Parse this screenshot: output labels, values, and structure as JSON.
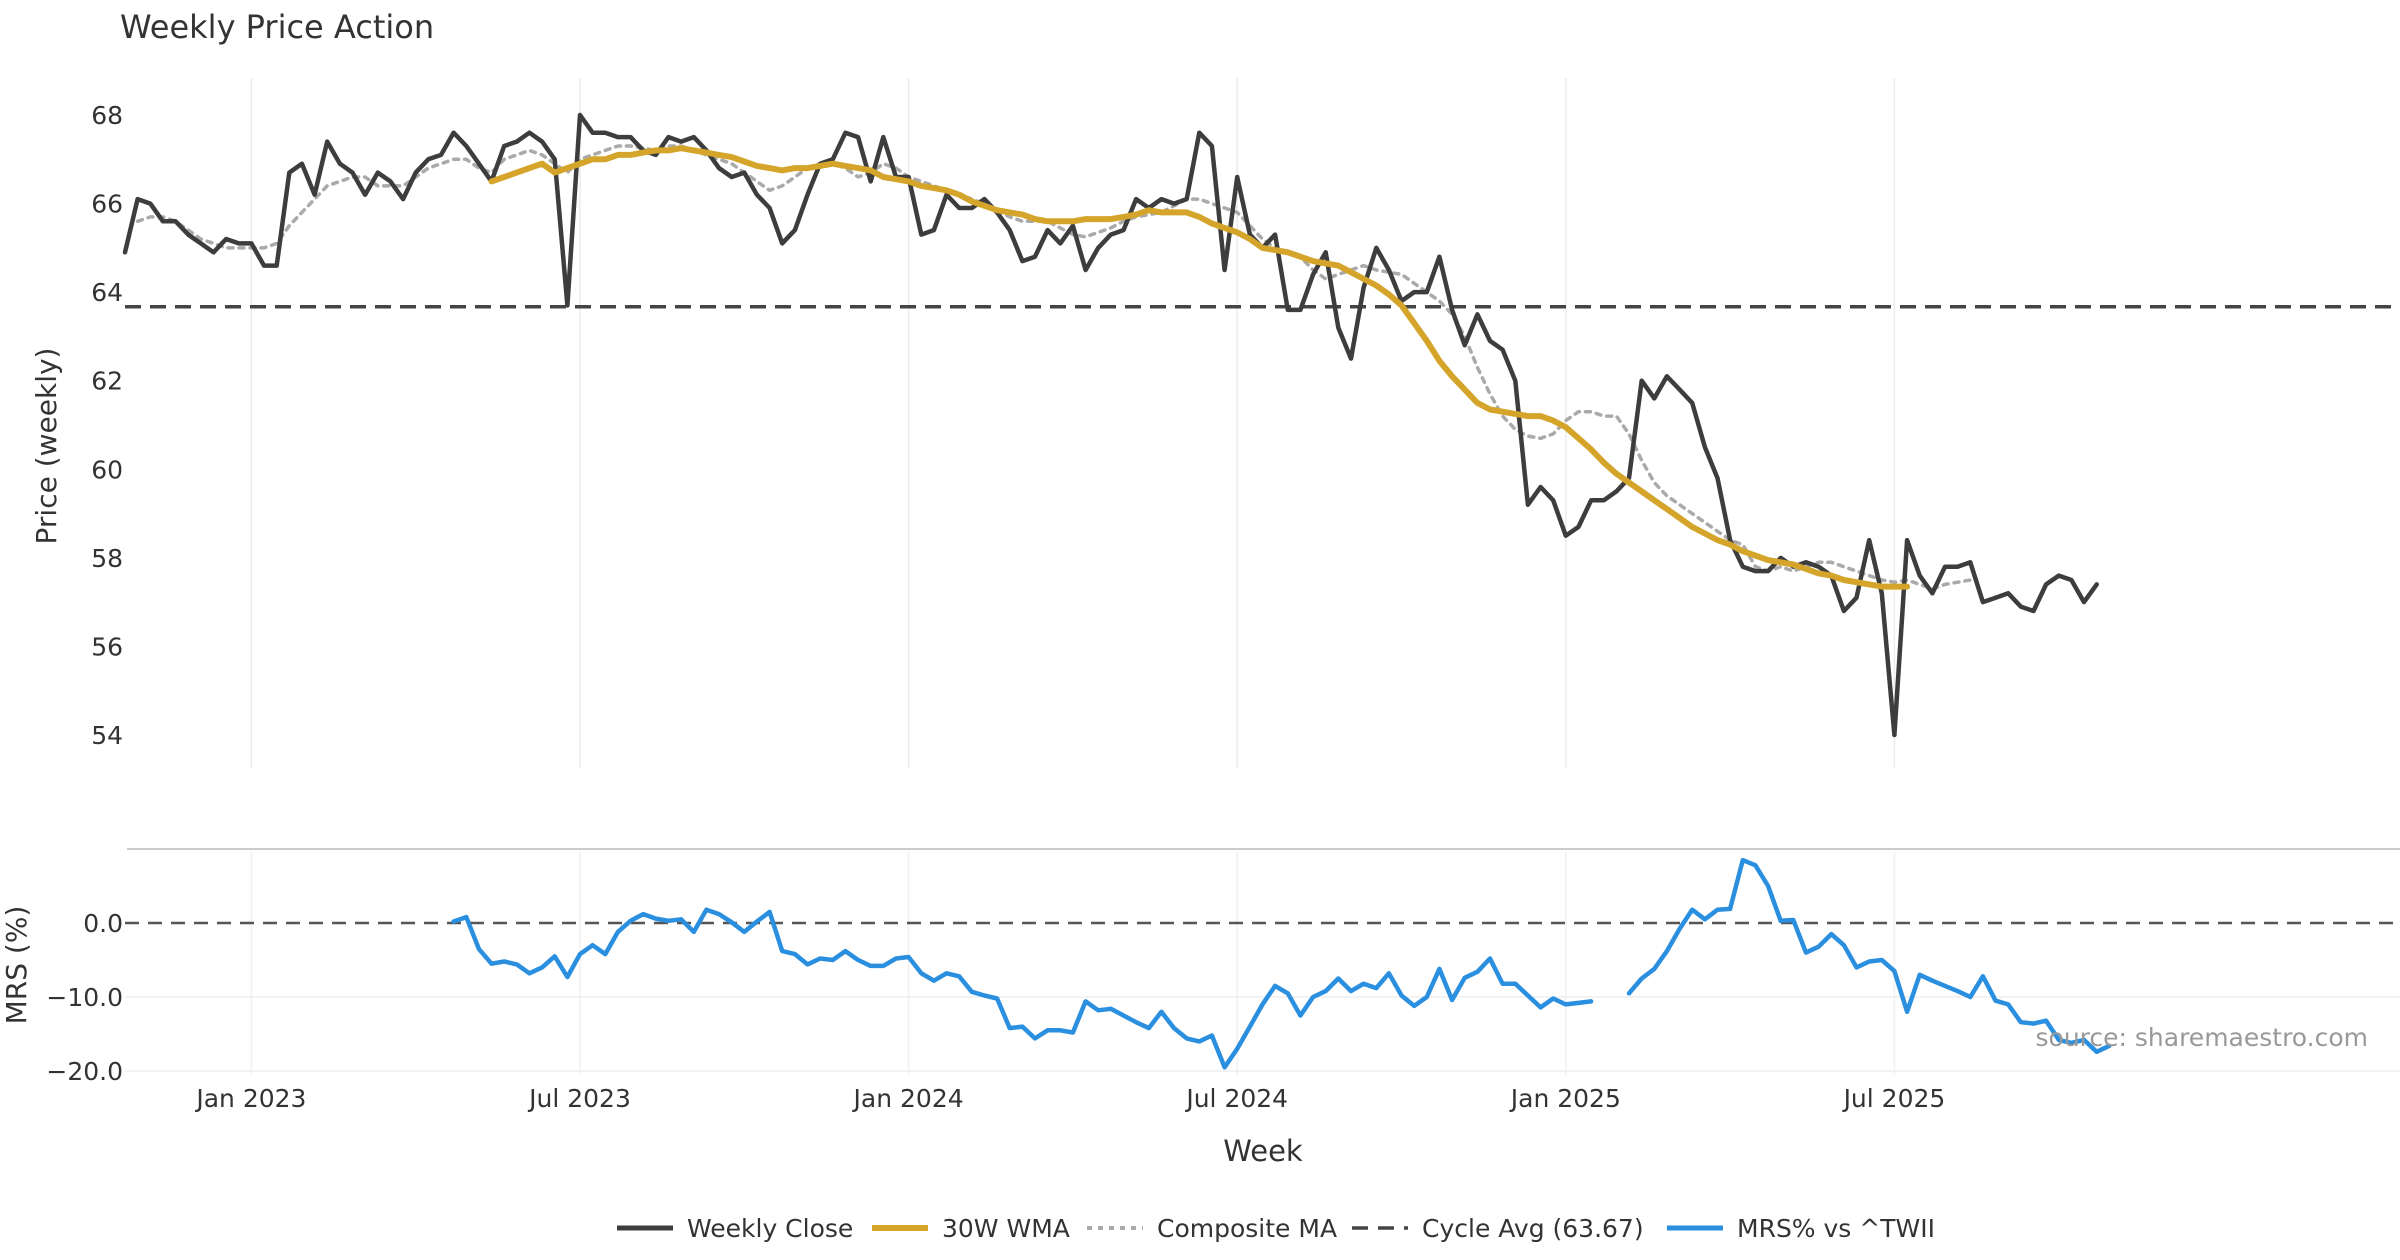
{
  "chart_data": [
    {
      "type": "line",
      "title": "Weekly Price Action",
      "ylabel": "Price (weekly)",
      "ylim": [
        53,
        69
      ],
      "yticks": [
        54,
        56,
        58,
        60,
        62,
        64,
        66,
        68
      ],
      "xlim": [
        0,
        180
      ],
      "x_ticks": [
        {
          "x": 10,
          "label": "Jan 2023"
        },
        {
          "x": 36,
          "label": "Jul 2023"
        },
        {
          "x": 62,
          "label": "Jan 2024"
        },
        {
          "x": 88,
          "label": "Jul 2024"
        },
        {
          "x": 114,
          "label": "Jan 2025"
        },
        {
          "x": 140,
          "label": "Jul 2025"
        }
      ],
      "reference_line": {
        "value": 63.67,
        "name": "Cycle Avg (63.67)"
      },
      "series": [
        {
          "name": "Weekly Close",
          "color": "#3d3d3d",
          "x_start": 0,
          "values": [
            64.9,
            66.1,
            66.0,
            65.6,
            65.6,
            65.3,
            65.1,
            64.9,
            65.2,
            65.1,
            65.1,
            64.6,
            64.6,
            66.7,
            66.9,
            66.2,
            67.4,
            66.9,
            66.7,
            66.2,
            66.7,
            66.5,
            66.1,
            66.7,
            67.0,
            67.1,
            67.6,
            67.3,
            66.9,
            66.5,
            67.3,
            67.4,
            67.6,
            67.4,
            67.0,
            63.7,
            68.0,
            67.6,
            67.6,
            67.5,
            67.5,
            67.2,
            67.1,
            67.5,
            67.4,
            67.5,
            67.2,
            66.8,
            66.6,
            66.7,
            66.2,
            65.9,
            65.1,
            65.4,
            66.2,
            66.9,
            67.0,
            67.6,
            67.5,
            66.5,
            67.5,
            66.6,
            66.6,
            65.3,
            65.4,
            66.2,
            65.9,
            65.9,
            66.1,
            65.8,
            65.4,
            64.7,
            64.8,
            65.4,
            65.1,
            65.5,
            64.5,
            65.0,
            65.3,
            65.4,
            66.1,
            65.9,
            66.1,
            66.0,
            66.1,
            67.6,
            67.3,
            64.5,
            66.6,
            65.3,
            65.0,
            65.3,
            63.6,
            63.6,
            64.4,
            64.9,
            63.2,
            62.5,
            64.1,
            65.0,
            64.5,
            63.8,
            64.0,
            64.0,
            64.8,
            63.6,
            62.8,
            63.5,
            62.9,
            62.7,
            62.0,
            59.2,
            59.6,
            59.3,
            58.5,
            58.7,
            59.3,
            59.3,
            59.5,
            59.8,
            62.0,
            61.6,
            62.1,
            61.8,
            61.5,
            60.5,
            59.8,
            58.4,
            57.8,
            57.7,
            57.7,
            58.0,
            57.8,
            57.9,
            57.8,
            57.6,
            56.8,
            57.1,
            58.4,
            57.2,
            54.0,
            58.4,
            57.6,
            57.2,
            57.8,
            57.8,
            57.9,
            57.0,
            57.1,
            57.2,
            56.9,
            56.8,
            57.4,
            57.6,
            57.5,
            57.0,
            57.4
          ]
        },
        {
          "name": "30W WMA",
          "color": "#d4a52a",
          "x_start": 29,
          "values": [
            66.5,
            66.6,
            66.7,
            66.8,
            66.9,
            66.7,
            66.8,
            66.9,
            67.0,
            67.0,
            67.1,
            67.1,
            67.15,
            67.2,
            67.2,
            67.25,
            67.2,
            67.15,
            67.1,
            67.05,
            66.95,
            66.85,
            66.8,
            66.75,
            66.8,
            66.8,
            66.85,
            66.9,
            66.85,
            66.8,
            66.75,
            66.6,
            66.55,
            66.5,
            66.4,
            66.35,
            66.3,
            66.2,
            66.05,
            65.95,
            65.85,
            65.8,
            65.75,
            65.65,
            65.6,
            65.6,
            65.6,
            65.65,
            65.65,
            65.65,
            65.7,
            65.75,
            65.85,
            65.8,
            65.8,
            65.8,
            65.7,
            65.55,
            65.45,
            65.35,
            65.2,
            65.0,
            64.95,
            64.9,
            64.8,
            64.7,
            64.65,
            64.6,
            64.45,
            64.3,
            64.15,
            63.95,
            63.7,
            63.3,
            62.9,
            62.45,
            62.1,
            61.8,
            61.5,
            61.35,
            61.3,
            61.25,
            61.2,
            61.2,
            61.1,
            60.95,
            60.7,
            60.45,
            60.15,
            59.9,
            59.7,
            59.5,
            59.3,
            59.1,
            58.9,
            58.7,
            58.55,
            58.4,
            58.3,
            58.15,
            58.05,
            57.95,
            57.9,
            57.85,
            57.75,
            57.65,
            57.6,
            57.5,
            57.45,
            57.4,
            57.35,
            57.35,
            57.35
          ]
        },
        {
          "name": "Composite MA",
          "color": "#aaaaaa",
          "x_start": 1,
          "values": [
            65.6,
            65.7,
            65.7,
            65.6,
            65.4,
            65.2,
            65.1,
            65.0,
            65.0,
            65.0,
            65.0,
            65.1,
            65.5,
            65.8,
            66.1,
            66.4,
            66.5,
            66.6,
            66.6,
            66.4,
            66.4,
            66.4,
            66.6,
            66.8,
            66.9,
            67.0,
            67.0,
            66.8,
            66.7,
            67.0,
            67.1,
            67.2,
            67.1,
            66.9,
            66.7,
            67.0,
            67.1,
            67.2,
            67.3,
            67.3,
            67.25,
            67.2,
            67.3,
            67.3,
            67.2,
            67.1,
            67.0,
            66.9,
            66.7,
            66.5,
            66.3,
            66.4,
            66.6,
            66.8,
            66.9,
            66.9,
            66.8,
            66.6,
            66.7,
            66.9,
            66.8,
            66.6,
            66.5,
            66.4,
            66.3,
            66.2,
            66.1,
            66.0,
            65.85,
            65.7,
            65.6,
            65.6,
            65.6,
            65.45,
            65.3,
            65.25,
            65.35,
            65.45,
            65.6,
            65.7,
            65.75,
            65.8,
            65.95,
            66.1,
            66.1,
            66.0,
            65.9,
            65.8,
            65.5,
            65.2,
            65.0,
            64.9,
            64.8,
            64.5,
            64.3,
            64.4,
            64.5,
            64.6,
            64.5,
            64.45,
            64.4,
            64.2,
            64.0,
            63.8,
            63.5,
            63.0,
            62.3,
            61.7,
            61.2,
            60.9,
            60.75,
            60.7,
            60.8,
            61.1,
            61.3,
            61.3,
            61.2,
            61.2,
            60.8,
            60.2,
            59.7,
            59.4,
            59.2,
            59.0,
            58.8,
            58.6,
            58.4,
            58.3,
            57.8,
            57.7,
            57.8,
            57.7,
            57.8,
            57.9,
            57.9,
            57.8,
            57.7,
            57.6,
            57.5,
            57.45,
            57.5,
            57.4,
            57.3,
            57.4,
            57.45,
            57.5
          ]
        }
      ]
    },
    {
      "type": "line",
      "ylabel": "MRS (%)",
      "xlabel": "Week",
      "ylim": [
        -21,
        10
      ],
      "yticks": [
        0,
        -10,
        -20
      ],
      "ytick_labels": [
        "0.0",
        "−10.0",
        "−20.0"
      ],
      "reference_line": {
        "value": 0
      },
      "annotation": "source: sharemaestro.com",
      "series": [
        {
          "name": "MRS% vs ^TWII",
          "color": "#2b8fe0",
          "x_start": 26,
          "values": [
            0.2,
            0.8,
            -3.5,
            -5.5,
            -5.2,
            -5.6,
            -6.8,
            -6.0,
            -4.5,
            -7.3,
            -4.2,
            -3.0,
            -4.2,
            -1.2,
            0.3,
            1.2,
            0.6,
            0.3,
            0.5,
            -1.2,
            1.8,
            1.2,
            0.1,
            -1.2,
            0.2,
            1.5,
            -3.8,
            -4.2,
            -5.6,
            -4.8,
            -5.0,
            -3.8,
            -5.0,
            -5.8,
            -5.8,
            -4.8,
            -4.6,
            -6.8,
            -7.8,
            -6.8,
            -7.2,
            -9.3,
            -9.8,
            -10.2,
            -14.2,
            -14.0,
            -15.6,
            -14.5,
            -14.5,
            -14.8,
            -10.6,
            -11.8,
            -11.6,
            -12.5,
            -13.4,
            -14.2,
            -12.0,
            -14.2,
            -15.6,
            -16.0,
            -15.2,
            -19.5,
            -17.0,
            -14.0,
            -11.0,
            -8.5,
            -9.5,
            -12.5,
            -10.0,
            -9.2,
            -7.5,
            -9.2,
            -8.2,
            -8.8,
            -6.8,
            -9.8,
            -11.2,
            -10.0,
            -6.2,
            -10.4,
            -7.4,
            -6.6,
            -4.8,
            -8.2,
            -8.2,
            -9.8,
            -11.4,
            -10.2,
            -11.0,
            -10.8,
            -10.6,
            null,
            null,
            -9.5,
            -7.5,
            -6.2,
            -3.8,
            -0.8,
            1.8,
            0.5,
            1.8,
            1.9,
            8.5,
            7.8,
            5.0,
            0.3,
            0.4,
            -4.0,
            -3.2,
            -1.5,
            -3.0,
            -6.0,
            -5.2,
            -5.0,
            -6.5,
            -12.0,
            -7.0,
            -7.8,
            -8.5,
            -9.2,
            -10.0,
            -7.2,
            -10.5,
            -11.0,
            -13.4,
            -13.6,
            -13.2,
            -15.8,
            -16.2,
            -15.8,
            -17.4,
            -16.6
          ]
        }
      ]
    }
  ],
  "legend": [
    {
      "name": "Weekly Close",
      "color": "#3d3d3d",
      "style": "solid"
    },
    {
      "name": "30W WMA",
      "color": "#d4a52a",
      "style": "thick"
    },
    {
      "name": "Composite MA",
      "color": "#aaaaaa",
      "style": "dotted"
    },
    {
      "name": "Cycle Avg (63.67)",
      "color": "#444444",
      "style": "dashed"
    },
    {
      "name": "MRS% vs ^TWII",
      "color": "#2b8fe0",
      "style": "solid"
    }
  ]
}
